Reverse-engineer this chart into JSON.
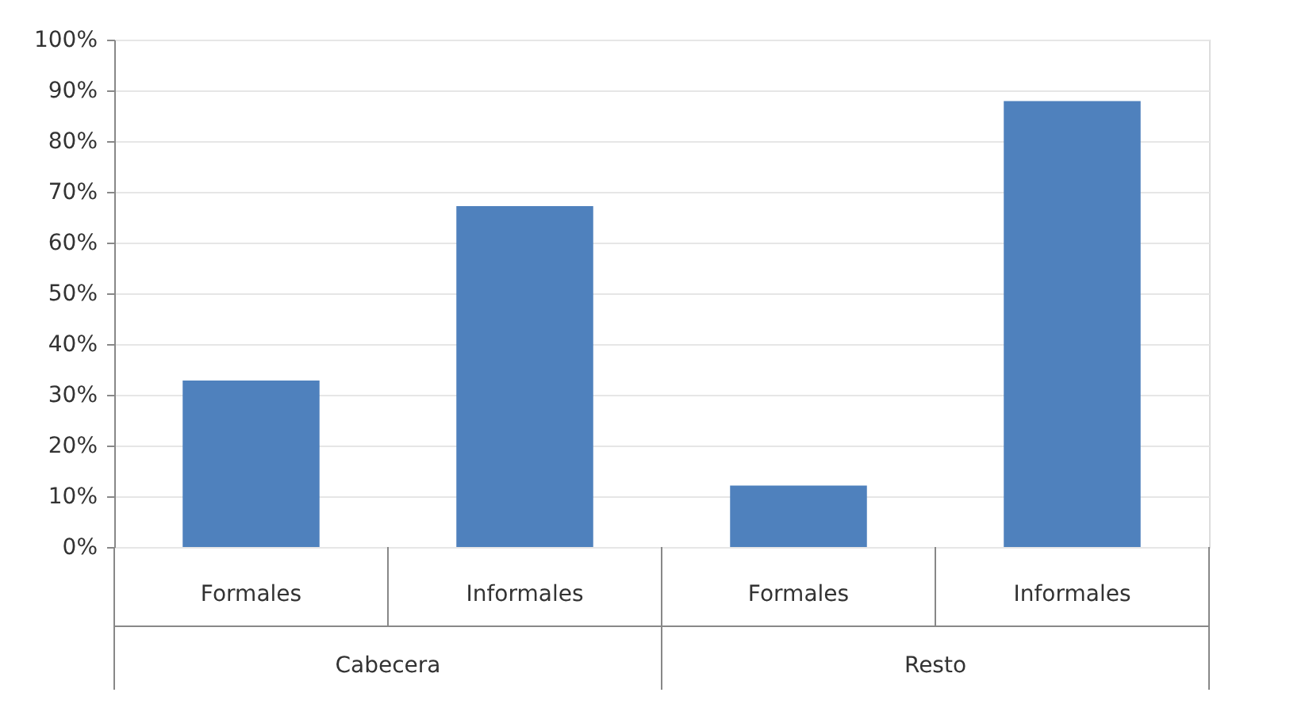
{
  "chart_data": {
    "type": "bar",
    "categories": [
      "Formales",
      "Informales",
      "Formales",
      "Informales"
    ],
    "values": [
      32.8,
      67.2,
      12.1,
      87.9
    ],
    "color": "#4f81bd",
    "ylim": [
      0,
      100
    ],
    "yticks": [
      {
        "value": 0,
        "label": "0%"
      },
      {
        "value": 10,
        "label": "10%"
      },
      {
        "value": 20,
        "label": "20%"
      },
      {
        "value": 30,
        "label": "30%"
      },
      {
        "value": 40,
        "label": "40%"
      },
      {
        "value": 50,
        "label": "50%"
      },
      {
        "value": 60,
        "label": "60%"
      },
      {
        "value": 70,
        "label": "70%"
      },
      {
        "value": 80,
        "label": "80%"
      },
      {
        "value": 90,
        "label": "90%"
      },
      {
        "value": 100,
        "label": "100%"
      }
    ],
    "grid": "y",
    "annotations": [
      "Cabecera",
      "Resto"
    ]
  }
}
